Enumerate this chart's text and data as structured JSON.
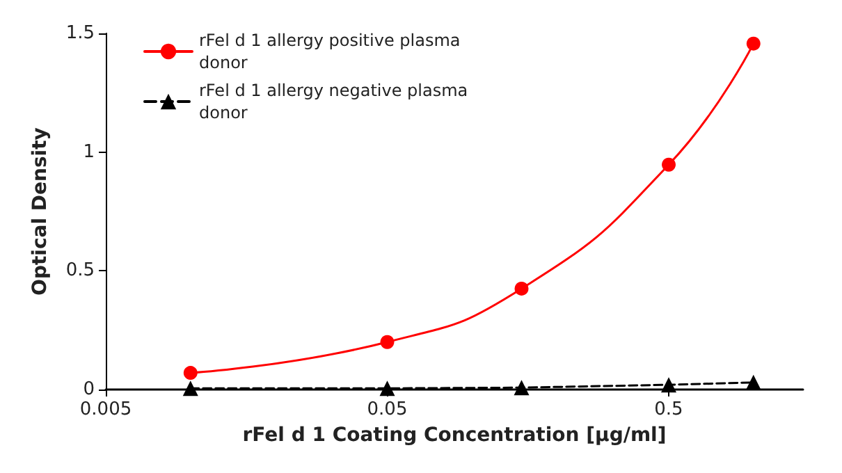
{
  "chart_data": {
    "type": "line",
    "xlabel": "rFel d 1 Coating Concentration [µg/ml]",
    "ylabel": "Optical Density",
    "log": "x",
    "x": [
      0.01,
      0.05,
      0.15,
      0.5,
      1.0
    ],
    "xlim": [
      0.005,
      1.5
    ],
    "xticks": [
      0.005,
      0.05,
      0.5
    ],
    "ylim": [
      0,
      1.5
    ],
    "yticks": [
      0,
      0.5,
      1,
      1.5
    ],
    "grid": false,
    "legend": "top left",
    "series": [
      {
        "name": "rFel d 1 allergy positive plasma donor",
        "color": "#ff0000",
        "values": [
          0.07,
          0.2,
          0.425,
          0.947,
          1.457
        ],
        "marker": "circle",
        "line_style": "solid"
      },
      {
        "name": "rFel d 1 allergy negative plasma donor",
        "color": "#000000",
        "values": [
          0.005,
          0.005,
          0.008,
          0.02,
          0.03
        ],
        "marker": "triangle",
        "line_style": "dashed"
      }
    ]
  }
}
